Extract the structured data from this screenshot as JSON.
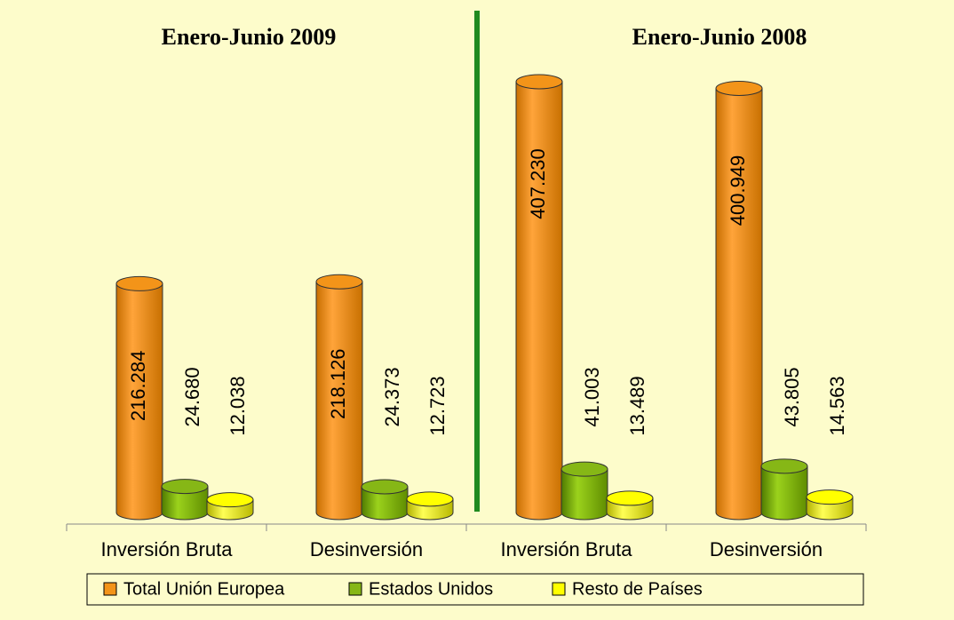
{
  "chart_data": {
    "type": "bar",
    "group_titles": [
      "Enero-Junio 2009",
      "Enero-Junio 2008"
    ],
    "categories": [
      "Inversión Bruta",
      "Desinversión",
      "Inversión Bruta",
      "Desinversión"
    ],
    "series": [
      {
        "name": "Total Unión Europea",
        "color": "#f39419",
        "values": [
          216284,
          218126,
          407230,
          400949
        ],
        "value_labels": [
          "216.284",
          "218.126",
          "407.230",
          "400.949"
        ]
      },
      {
        "name": "Estados Unidos",
        "color": "#86b716",
        "values": [
          24680,
          24373,
          41003,
          43805
        ],
        "value_labels": [
          "24.680",
          "24.373",
          "41.003",
          "43.805"
        ]
      },
      {
        "name": "Resto de Países",
        "color": "#ffff00",
        "values": [
          12038,
          12723,
          13489,
          14563
        ],
        "value_labels": [
          "12.038",
          "12.723",
          "13.489",
          "14.563"
        ]
      }
    ],
    "legend": "bottom"
  }
}
